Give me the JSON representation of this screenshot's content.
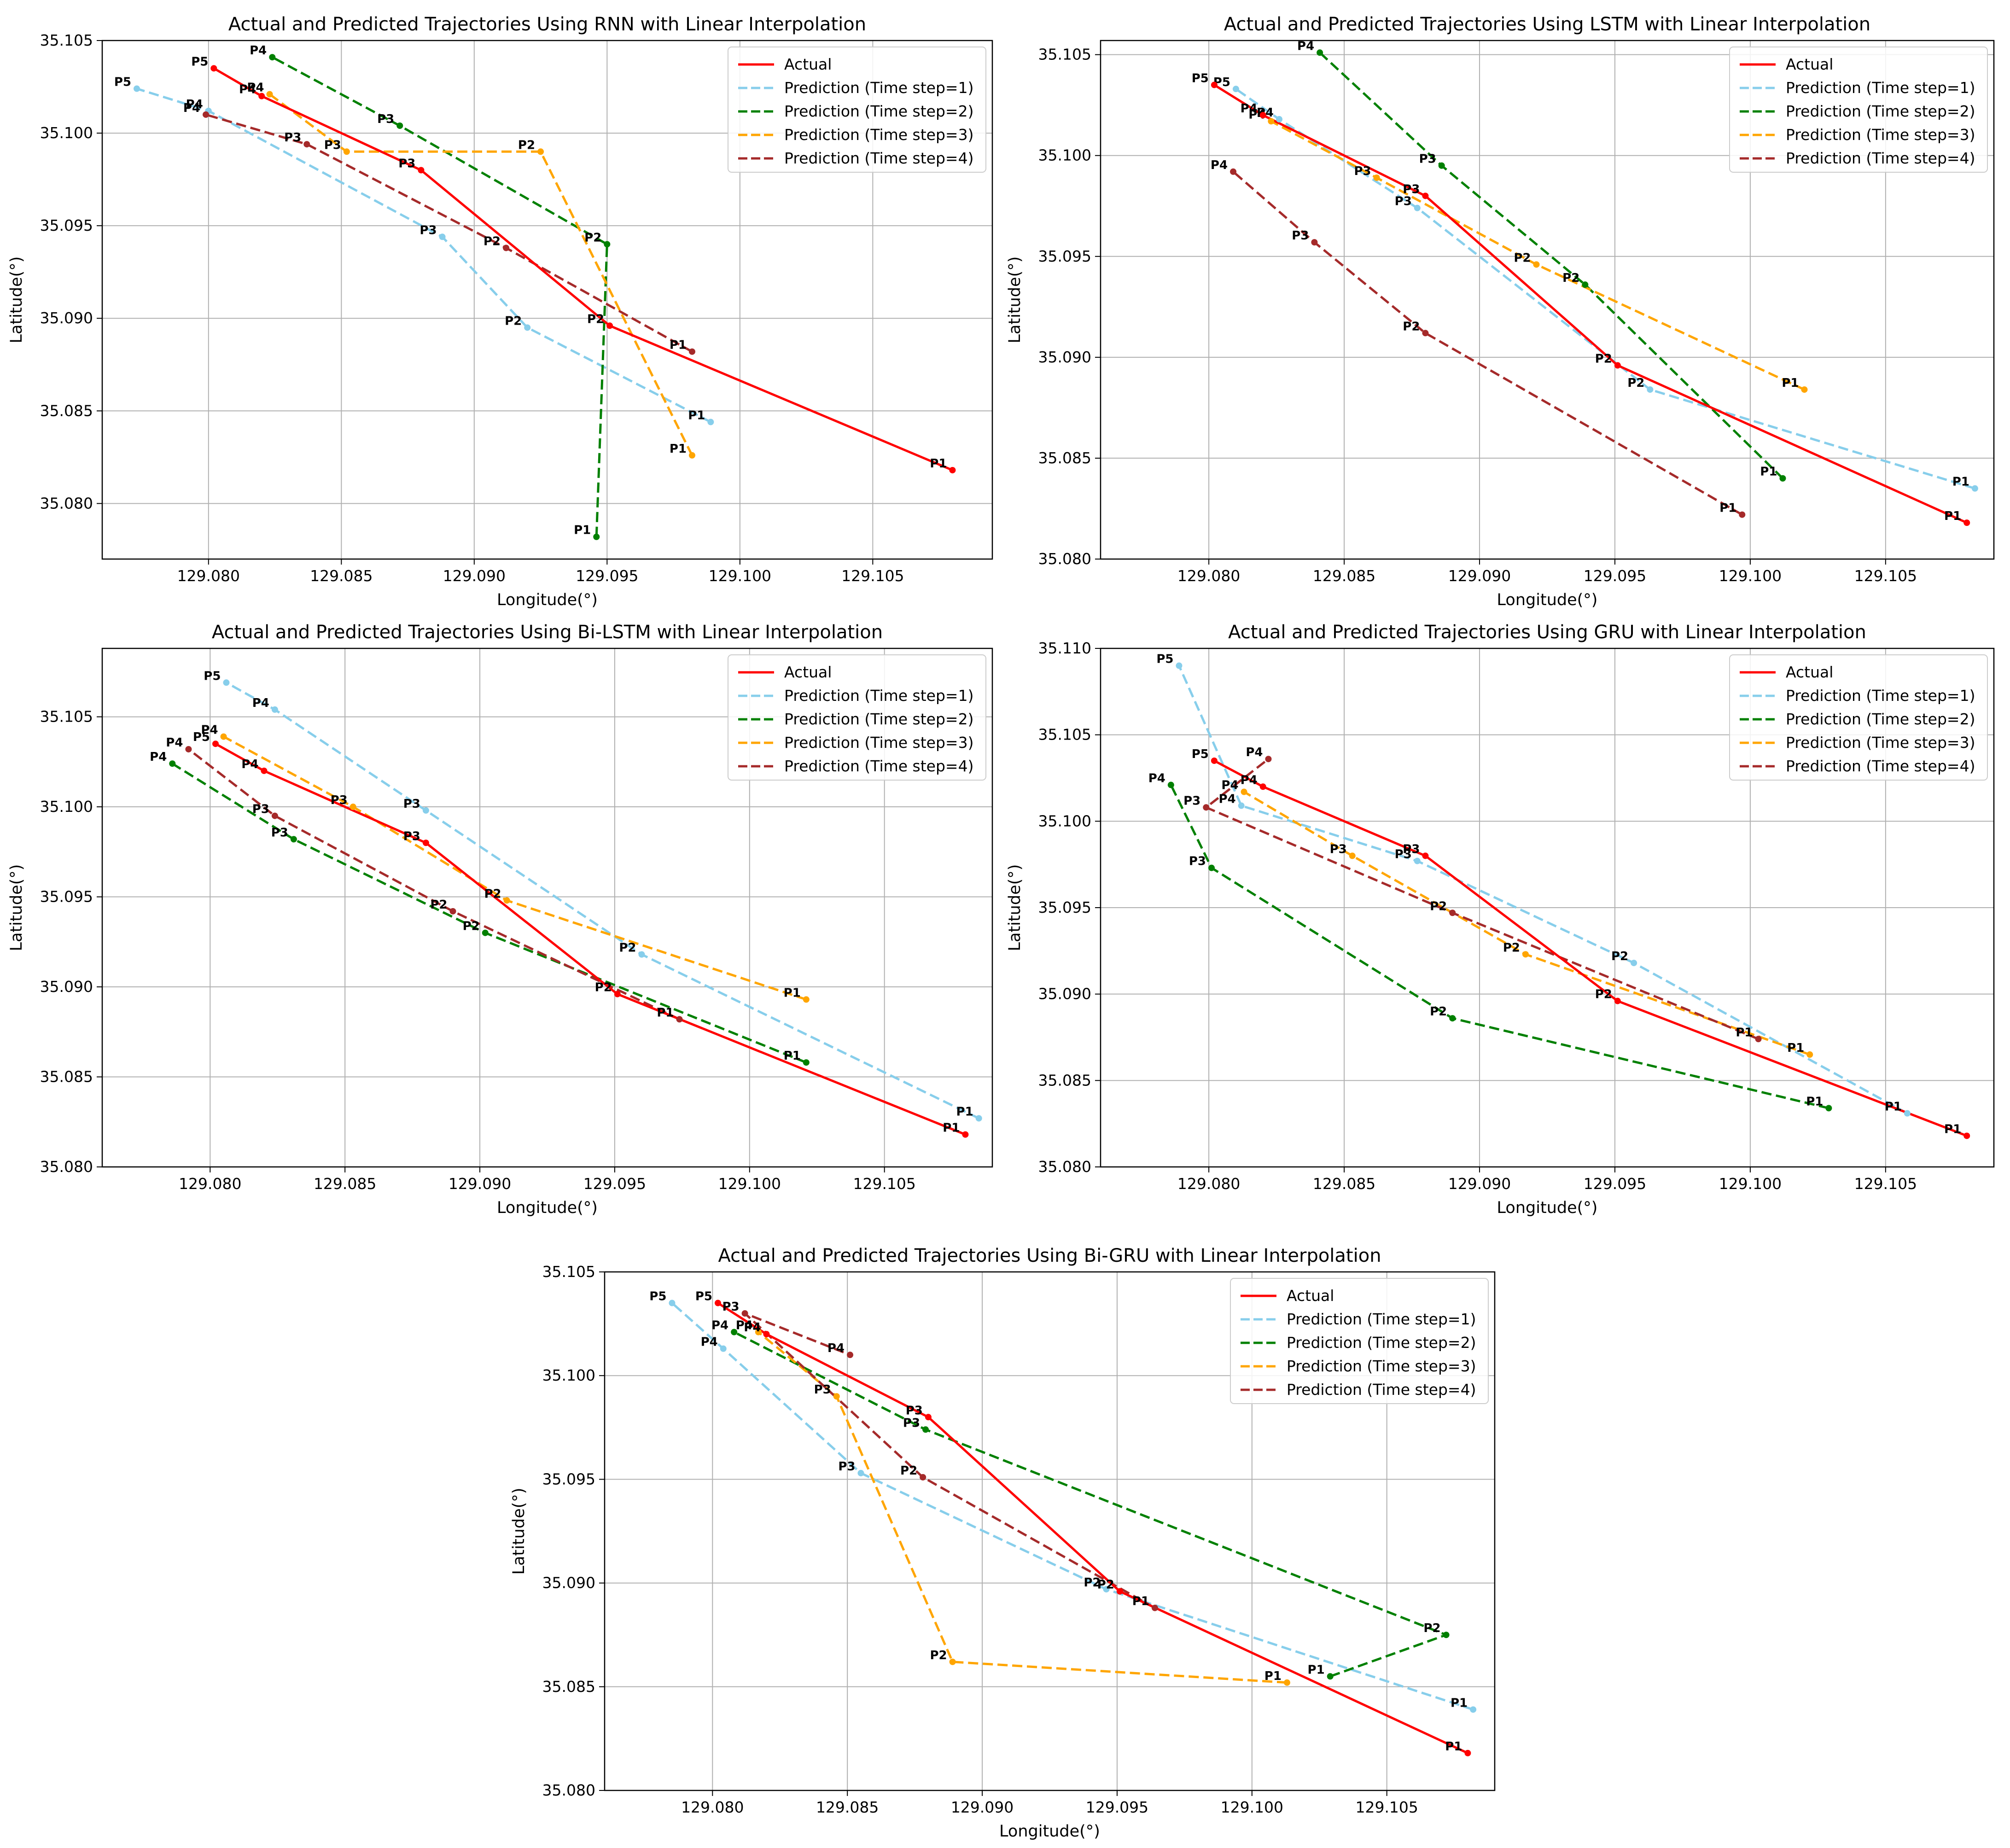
{
  "figure": {
    "xlabel": "Longitude(°)",
    "ylabel": "Latitude(°)",
    "legend": [
      {
        "label": "Actual",
        "color": "#ff0000",
        "dash": false
      },
      {
        "label": "Prediction (Time step=1)",
        "color": "#87ceeb",
        "dash": true
      },
      {
        "label": "Prediction (Time step=2)",
        "color": "#008000",
        "dash": true
      },
      {
        "label": "Prediction (Time step=3)",
        "color": "#ffa500",
        "dash": true
      },
      {
        "label": "Prediction (Time step=4)",
        "color": "#a52a2a",
        "dash": true
      }
    ]
  },
  "chart_data": [
    {
      "type": "line",
      "title": "Actual and Predicted Trajectories Using RNN with Linear Interpolation",
      "xlabel": "Longitude(°)",
      "ylabel": "Latitude(°)",
      "xlim": [
        129.076,
        129.1095
      ],
      "ylim": [
        35.077,
        35.105
      ],
      "xticks": [
        "129.080",
        "129.085",
        "129.090",
        "129.095",
        "129.100",
        "129.105"
      ],
      "yticks": [
        "35.080",
        "35.085",
        "35.090",
        "35.095",
        "35.100",
        "35.105"
      ],
      "grid": true,
      "legend_position": "top-right",
      "series": [
        {
          "name": "Actual",
          "color": "#ff0000",
          "points": [
            {
              "label": "P1",
              "x": 129.108,
              "y": 35.0818
            },
            {
              "label": "P2",
              "x": 129.0951,
              "y": 35.0896
            },
            {
              "label": "P3",
              "x": 129.088,
              "y": 35.098
            },
            {
              "label": "P4",
              "x": 129.082,
              "y": 35.102
            },
            {
              "label": "P5",
              "x": 129.0802,
              "y": 35.1035
            }
          ]
        },
        {
          "name": "Prediction (Time step=1)",
          "color": "#87ceeb",
          "points": [
            {
              "label": "P1",
              "x": 129.0989,
              "y": 35.0844
            },
            {
              "label": "P2",
              "x": 129.092,
              "y": 35.0895
            },
            {
              "label": "P3",
              "x": 129.0888,
              "y": 35.0944
            },
            {
              "label": "P4",
              "x": 129.08,
              "y": 35.1012
            },
            {
              "label": "P5",
              "x": 129.0773,
              "y": 35.1024
            }
          ]
        },
        {
          "name": "Prediction (Time step=2)",
          "color": "#008000",
          "points": [
            {
              "label": "P1",
              "x": 129.0946,
              "y": 35.0782
            },
            {
              "label": "P2",
              "x": 129.095,
              "y": 35.094
            },
            {
              "label": "P3",
              "x": 129.0872,
              "y": 35.1004
            },
            {
              "label": "P4",
              "x": 129.0824,
              "y": 35.1041
            }
          ]
        },
        {
          "name": "Prediction (Time step=3)",
          "color": "#ffa500",
          "points": [
            {
              "label": "P1",
              "x": 129.0982,
              "y": 35.0826
            },
            {
              "label": "P2",
              "x": 129.0925,
              "y": 35.099
            },
            {
              "label": "P3",
              "x": 129.0852,
              "y": 35.099
            },
            {
              "label": "P4",
              "x": 129.0823,
              "y": 35.1021
            }
          ]
        },
        {
          "name": "Prediction (Time step=4)",
          "color": "#a52a2a",
          "points": [
            {
              "label": "P1",
              "x": 129.0982,
              "y": 35.0882
            },
            {
              "label": "P2",
              "x": 129.0912,
              "y": 35.0938
            },
            {
              "label": "P3",
              "x": 129.0837,
              "y": 35.0994
            },
            {
              "label": "P4",
              "x": 129.0799,
              "y": 35.101
            }
          ]
        }
      ]
    },
    {
      "type": "line",
      "title": "Actual and Predicted Trajectories Using LSTM with Linear Interpolation",
      "xlabel": "Longitude(°)",
      "ylabel": "Latitude(°)",
      "xlim": [
        129.076,
        129.109
      ],
      "ylim": [
        35.08,
        35.1057
      ],
      "xticks": [
        "129.080",
        "129.085",
        "129.090",
        "129.095",
        "129.100",
        "129.105"
      ],
      "yticks": [
        "35.080",
        "35.085",
        "35.090",
        "35.095",
        "35.100",
        "35.105"
      ],
      "grid": true,
      "legend_position": "top-right",
      "series": [
        {
          "name": "Actual",
          "color": "#ff0000",
          "points": [
            {
              "label": "P1",
              "x": 129.108,
              "y": 35.0818
            },
            {
              "label": "P2",
              "x": 129.0951,
              "y": 35.0896
            },
            {
              "label": "P3",
              "x": 129.088,
              "y": 35.098
            },
            {
              "label": "P4",
              "x": 129.082,
              "y": 35.102
            },
            {
              "label": "P5",
              "x": 129.0802,
              "y": 35.1035
            }
          ]
        },
        {
          "name": "Prediction (Time step=1)",
          "color": "#87ceeb",
          "points": [
            {
              "label": "P1",
              "x": 129.1083,
              "y": 35.0835
            },
            {
              "label": "P2",
              "x": 129.0963,
              "y": 35.0884
            },
            {
              "label": "P3",
              "x": 129.0877,
              "y": 35.0974
            },
            {
              "label": "P4",
              "x": 129.0826,
              "y": 35.1018
            },
            {
              "label": "P5",
              "x": 129.081,
              "y": 35.1033
            }
          ]
        },
        {
          "name": "Prediction (Time step=2)",
          "color": "#008000",
          "points": [
            {
              "label": "P1",
              "x": 129.1012,
              "y": 35.084
            },
            {
              "label": "P2",
              "x": 129.0939,
              "y": 35.0936
            },
            {
              "label": "P3",
              "x": 129.0886,
              "y": 35.0995
            },
            {
              "label": "P4",
              "x": 129.0841,
              "y": 35.1051
            }
          ]
        },
        {
          "name": "Prediction (Time step=3)",
          "color": "#ffa500",
          "points": [
            {
              "label": "P1",
              "x": 129.102,
              "y": 35.0884
            },
            {
              "label": "P2",
              "x": 129.0921,
              "y": 35.0946
            },
            {
              "label": "P3",
              "x": 129.0862,
              "y": 35.0989
            },
            {
              "label": "P4",
              "x": 129.0823,
              "y": 35.1017
            }
          ]
        },
        {
          "name": "Prediction (Time step=4)",
          "color": "#a52a2a",
          "points": [
            {
              "label": "P1",
              "x": 129.0997,
              "y": 35.0822
            },
            {
              "label": "P2",
              "x": 129.088,
              "y": 35.0912
            },
            {
              "label": "P3",
              "x": 129.0839,
              "y": 35.0957
            },
            {
              "label": "P4",
              "x": 129.0809,
              "y": 35.0992
            }
          ]
        }
      ]
    },
    {
      "type": "line",
      "title": "Actual and Predicted Trajectories Using Bi-LSTM with Linear Interpolation",
      "xlabel": "Longitude(°)",
      "ylabel": "Latitude(°)",
      "xlim": [
        129.076,
        129.109
      ],
      "ylim": [
        35.08,
        35.1088
      ],
      "xticks": [
        "129.080",
        "129.085",
        "129.090",
        "129.095",
        "129.100",
        "129.105"
      ],
      "yticks": [
        "35.080",
        "35.085",
        "35.090",
        "35.095",
        "35.100",
        "35.105"
      ],
      "grid": true,
      "legend_position": "top-right",
      "series": [
        {
          "name": "Actual",
          "color": "#ff0000",
          "points": [
            {
              "label": "P1",
              "x": 129.108,
              "y": 35.0818
            },
            {
              "label": "P2",
              "x": 129.0951,
              "y": 35.0896
            },
            {
              "label": "P3",
              "x": 129.088,
              "y": 35.098
            },
            {
              "label": "P4",
              "x": 129.082,
              "y": 35.102
            },
            {
              "label": "P5",
              "x": 129.0802,
              "y": 35.1035
            }
          ]
        },
        {
          "name": "Prediction (Time step=1)",
          "color": "#87ceeb",
          "points": [
            {
              "label": "P1",
              "x": 129.1085,
              "y": 35.0827
            },
            {
              "label": "P2",
              "x": 129.096,
              "y": 35.0918
            },
            {
              "label": "P3",
              "x": 129.088,
              "y": 35.0998
            },
            {
              "label": "P4",
              "x": 129.0824,
              "y": 35.1054
            },
            {
              "label": "P5",
              "x": 129.0806,
              "y": 35.1069
            }
          ]
        },
        {
          "name": "Prediction (Time step=2)",
          "color": "#008000",
          "points": [
            {
              "label": "P1",
              "x": 129.1021,
              "y": 35.0858
            },
            {
              "label": "P2",
              "x": 129.0902,
              "y": 35.093
            },
            {
              "label": "P3",
              "x": 129.0831,
              "y": 35.0982
            },
            {
              "label": "P4",
              "x": 129.0786,
              "y": 35.1024
            }
          ]
        },
        {
          "name": "Prediction (Time step=3)",
          "color": "#ffa500",
          "points": [
            {
              "label": "P1",
              "x": 129.1021,
              "y": 35.0893
            },
            {
              "label": "P2",
              "x": 129.091,
              "y": 35.0948
            },
            {
              "label": "P3",
              "x": 129.0853,
              "y": 35.1
            },
            {
              "label": "P4",
              "x": 129.0805,
              "y": 35.1039
            }
          ]
        },
        {
          "name": "Prediction (Time step=4)",
          "color": "#a52a2a",
          "points": [
            {
              "label": "P1",
              "x": 129.0974,
              "y": 35.0882
            },
            {
              "label": "P2",
              "x": 129.089,
              "y": 35.0942
            },
            {
              "label": "P3",
              "x": 129.0824,
              "y": 35.0995
            },
            {
              "label": "P4",
              "x": 129.0792,
              "y": 35.1032
            }
          ]
        }
      ]
    },
    {
      "type": "line",
      "title": "Actual and Predicted Trajectories Using GRU with Linear Interpolation",
      "xlabel": "Longitude(°)",
      "ylabel": "Latitude(°)",
      "xlim": [
        129.076,
        129.109
      ],
      "ylim": [
        35.08,
        35.11
      ],
      "xticks": [
        "129.080",
        "129.085",
        "129.090",
        "129.095",
        "129.100",
        "129.105"
      ],
      "yticks": [
        "35.080",
        "35.085",
        "35.090",
        "35.095",
        "35.100",
        "35.105",
        "35.110"
      ],
      "grid": true,
      "legend_position": "top-right",
      "series": [
        {
          "name": "Actual",
          "color": "#ff0000",
          "points": [
            {
              "label": "P1",
              "x": 129.108,
              "y": 35.0818
            },
            {
              "label": "P2",
              "x": 129.0951,
              "y": 35.0896
            },
            {
              "label": "P3",
              "x": 129.088,
              "y": 35.098
            },
            {
              "label": "P4",
              "x": 129.082,
              "y": 35.102
            },
            {
              "label": "P5",
              "x": 129.0802,
              "y": 35.1035
            }
          ]
        },
        {
          "name": "Prediction (Time step=1)",
          "color": "#87ceeb",
          "points": [
            {
              "label": "P1",
              "x": 129.1058,
              "y": 35.0831
            },
            {
              "label": "P2",
              "x": 129.0957,
              "y": 35.0918
            },
            {
              "label": "P3",
              "x": 129.0877,
              "y": 35.0977
            },
            {
              "label": "P4",
              "x": 129.0812,
              "y": 35.1009
            },
            {
              "label": "P5",
              "x": 129.0789,
              "y": 35.109
            }
          ]
        },
        {
          "name": "Prediction (Time step=2)",
          "color": "#008000",
          "points": [
            {
              "label": "P1",
              "x": 129.1029,
              "y": 35.0834
            },
            {
              "label": "P2",
              "x": 129.089,
              "y": 35.0886
            },
            {
              "label": "P3",
              "x": 129.0801,
              "y": 35.0973
            },
            {
              "label": "P4",
              "x": 129.0786,
              "y": 35.1021
            }
          ]
        },
        {
          "name": "Prediction (Time step=3)",
          "color": "#ffa500",
          "points": [
            {
              "label": "P1",
              "x": 129.1022,
              "y": 35.0865
            },
            {
              "label": "P2",
              "x": 129.0917,
              "y": 35.0923
            },
            {
              "label": "P3",
              "x": 129.0853,
              "y": 35.098
            },
            {
              "label": "P4",
              "x": 129.0813,
              "y": 35.1017
            }
          ]
        },
        {
          "name": "Prediction (Time step=4)",
          "color": "#a52a2a",
          "points": [
            {
              "label": "P1",
              "x": 129.1003,
              "y": 35.0874
            },
            {
              "label": "P2",
              "x": 129.089,
              "y": 35.0947
            },
            {
              "label": "P3",
              "x": 129.0799,
              "y": 35.1008
            },
            {
              "label": "P4",
              "x": 129.0822,
              "y": 35.1036
            }
          ]
        }
      ]
    },
    {
      "type": "line",
      "title": "Actual and Predicted Trajectories Using Bi-GRU with Linear Interpolation",
      "xlabel": "Longitude(°)",
      "ylabel": "Latitude(°)",
      "xlim": [
        129.076,
        129.109
      ],
      "ylim": [
        35.08,
        35.105
      ],
      "xticks": [
        "129.080",
        "129.085",
        "129.090",
        "129.095",
        "129.100",
        "129.105"
      ],
      "yticks": [
        "35.080",
        "35.085",
        "35.090",
        "35.095",
        "35.100",
        "35.105"
      ],
      "grid": true,
      "legend_position": "top-right",
      "series": [
        {
          "name": "Actual",
          "color": "#ff0000",
          "points": [
            {
              "label": "P1",
              "x": 129.108,
              "y": 35.0818
            },
            {
              "label": "P2",
              "x": 129.0951,
              "y": 35.0896
            },
            {
              "label": "P3",
              "x": 129.088,
              "y": 35.098
            },
            {
              "label": "P4",
              "x": 129.082,
              "y": 35.102
            },
            {
              "label": "P5",
              "x": 129.0802,
              "y": 35.1035
            }
          ]
        },
        {
          "name": "Prediction (Time step=1)",
          "color": "#87ceeb",
          "points": [
            {
              "label": "P1",
              "x": 129.1082,
              "y": 35.0839
            },
            {
              "label": "P2",
              "x": 129.0946,
              "y": 35.0897
            },
            {
              "label": "P3",
              "x": 129.0855,
              "y": 35.0953
            },
            {
              "label": "P4",
              "x": 129.0804,
              "y": 35.1013
            },
            {
              "label": "P5",
              "x": 129.0785,
              "y": 35.1035
            }
          ]
        },
        {
          "name": "Prediction (Time step=2)",
          "color": "#008000",
          "points": [
            {
              "label": "P1",
              "x": 129.1029,
              "y": 35.0855
            },
            {
              "label": "P2",
              "x": 129.1072,
              "y": 35.0875
            },
            {
              "label": "P3",
              "x": 129.0879,
              "y": 35.0974
            },
            {
              "label": "P4",
              "x": 129.0808,
              "y": 35.1021
            }
          ]
        },
        {
          "name": "Prediction (Time step=3)",
          "color": "#ffa500",
          "points": [
            {
              "label": "P1",
              "x": 129.1013,
              "y": 35.0852
            },
            {
              "label": "P2",
              "x": 129.0889,
              "y": 35.0862
            },
            {
              "label": "P3",
              "x": 129.0846,
              "y": 35.099
            },
            {
              "label": "P4",
              "x": 129.0817,
              "y": 35.1021
            }
          ]
        },
        {
          "name": "Prediction (Time step=4)",
          "color": "#a52a2a",
          "points": [
            {
              "label": "P1",
              "x": 129.0964,
              "y": 35.0888
            },
            {
              "label": "P2",
              "x": 129.0878,
              "y": 35.0951
            },
            {
              "label": "P3",
              "x": 129.0812,
              "y": 35.103
            },
            {
              "label": "P4",
              "x": 129.0851,
              "y": 35.101
            }
          ]
        }
      ]
    }
  ]
}
